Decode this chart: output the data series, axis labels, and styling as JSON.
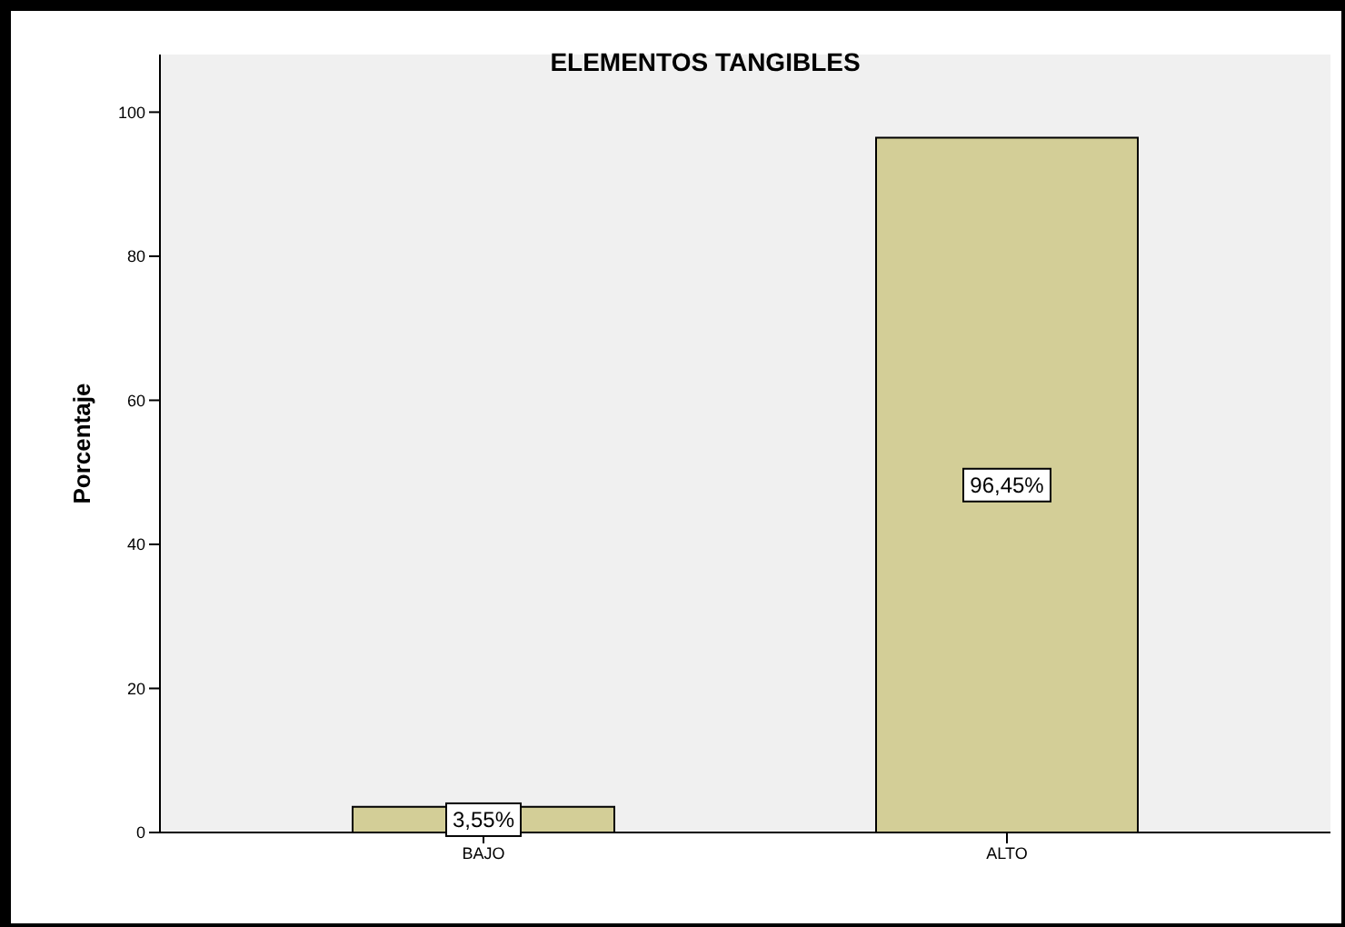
{
  "chart_data": {
    "type": "bar",
    "title": "ELEMENTOS TANGIBLES",
    "ylabel": "Porcentaje",
    "categories": [
      "BAJO",
      "ALTO"
    ],
    "values": [
      3.55,
      96.45
    ],
    "value_labels": [
      "3,55%",
      "96,45%"
    ],
    "color": "#d3ce97",
    "ylim": [
      0,
      108
    ],
    "yticks": [
      0,
      20,
      40,
      60,
      80,
      100
    ],
    "grid": false
  }
}
